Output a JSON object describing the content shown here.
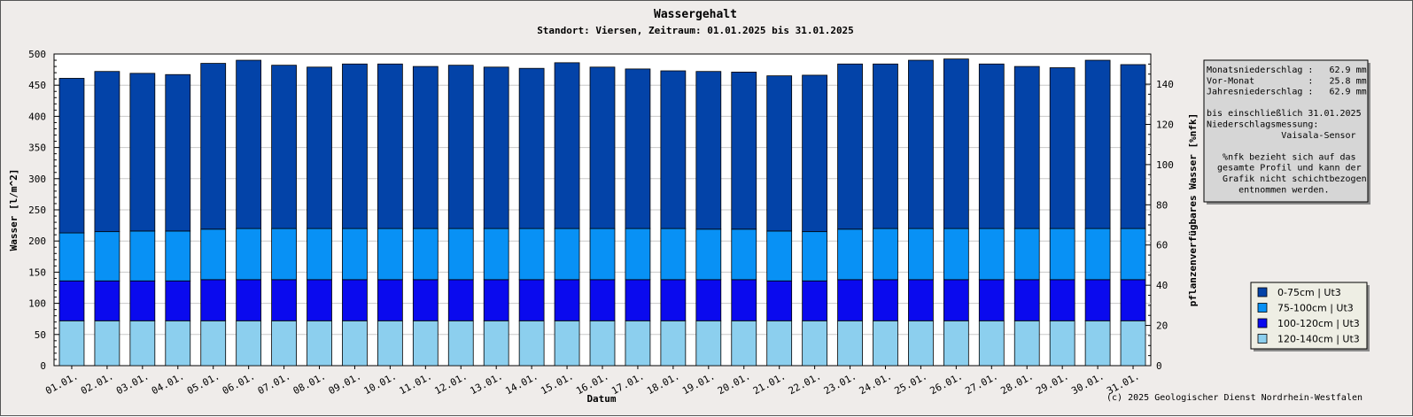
{
  "chart_data": {
    "type": "bar",
    "stacked": true,
    "title": "Wassergehalt",
    "subtitle": "Standort: Viersen, Zeitraum: 01.01.2025 bis 31.01.2025",
    "xlabel": "Datum",
    "ylabel": "Wasser [l/m^2]",
    "y2label": "pflanzenverfügbares Wasser [%nfk]",
    "ylim": [
      0,
      500
    ],
    "yticks": [
      0,
      50,
      100,
      150,
      200,
      250,
      300,
      350,
      400,
      450,
      500
    ],
    "y2lim": [
      0,
      155
    ],
    "y2ticks": [
      0,
      20,
      40,
      60,
      80,
      100,
      120,
      140
    ],
    "grid": true,
    "legend_position": "right",
    "categories": [
      "01.01.",
      "02.01.",
      "03.01.",
      "04.01.",
      "05.01.",
      "06.01.",
      "07.01.",
      "08.01.",
      "09.01.",
      "10.01.",
      "11.01.",
      "12.01.",
      "13.01.",
      "14.01.",
      "15.01.",
      "16.01.",
      "17.01.",
      "18.01.",
      "19.01.",
      "20.01.",
      "21.01.",
      "22.01.",
      "23.01.",
      "24.01.",
      "25.01.",
      "26.01.",
      "27.01.",
      "28.01.",
      "29.01.",
      "30.01.",
      "31.01."
    ],
    "series": [
      {
        "name": "120-140cm | Ut3",
        "color": "#8ccfee",
        "values": [
          72,
          72,
          72,
          72,
          72,
          72,
          72,
          72,
          72,
          72,
          72,
          72,
          72,
          72,
          72,
          72,
          72,
          72,
          72,
          72,
          72,
          72,
          72,
          72,
          72,
          72,
          72,
          72,
          72,
          72,
          72
        ]
      },
      {
        "name": "100-120cm | Ut3",
        "color": "#0a0aee",
        "values": [
          64,
          64,
          64,
          64,
          66,
          66,
          66,
          66,
          66,
          66,
          66,
          66,
          66,
          66,
          66,
          66,
          66,
          66,
          66,
          66,
          64,
          64,
          66,
          66,
          66,
          66,
          66,
          66,
          66,
          66,
          66
        ]
      },
      {
        "name": "75-100cm | Ut3",
        "color": "#0891f5",
        "values": [
          77,
          79,
          80,
          80,
          81,
          82,
          82,
          82,
          82,
          82,
          82,
          82,
          82,
          82,
          82,
          82,
          82,
          82,
          81,
          81,
          80,
          79,
          81,
          82,
          82,
          82,
          82,
          82,
          82,
          82,
          82
        ]
      },
      {
        "name": "0-75cm | Ut3",
        "color": "#0343a8",
        "values": [
          248,
          257,
          253,
          251,
          266,
          270,
          262,
          259,
          264,
          264,
          260,
          262,
          259,
          257,
          266,
          259,
          256,
          253,
          253,
          252,
          249,
          251,
          265,
          264,
          270,
          272,
          264,
          260,
          258,
          270,
          263
        ]
      }
    ]
  },
  "info_box": {
    "lines": [
      "Monatsniederschlag :   62.9 mm",
      "Vor-Monat          :   25.8 mm",
      "Jahresniederschlag :   62.9 mm",
      "",
      "bis einschließlich 31.01.2025",
      "Niederschlagsmessung:",
      "              Vaisala-Sensor",
      "",
      "   %nfk bezieht sich auf das",
      "  gesamte Profil und kann der",
      "   Grafik nicht schichtbezogen",
      "      entnommen werden."
    ]
  },
  "legend": {
    "items": [
      {
        "label": "0-75cm | Ut3",
        "color": "#0343a8"
      },
      {
        "label": "75-100cm | Ut3",
        "color": "#0891f5"
      },
      {
        "label": "100-120cm | Ut3",
        "color": "#0a0aee"
      },
      {
        "label": "120-140cm | Ut3",
        "color": "#8ccfee"
      }
    ]
  },
  "copyright": "(c) 2025 Geologischer Dienst Nordrhein-Westfalen"
}
